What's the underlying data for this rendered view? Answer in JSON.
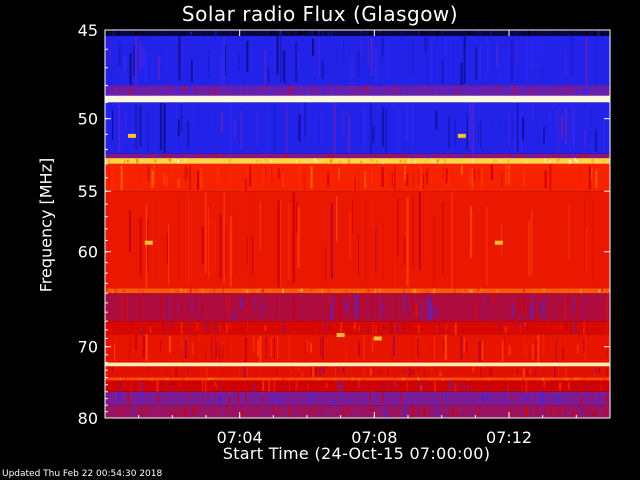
{
  "chart_data": {
    "type": "heatmap",
    "title": "Solar radio Flux (Glasgow)",
    "ylabel": "Frequency [MHz]",
    "xlabel": "Start Time (24-Oct-15 07:00:00)",
    "y_ticks": [
      45,
      50,
      55,
      60,
      70,
      80
    ],
    "x_ticks": [
      "07:04",
      "07:08",
      "07:12"
    ],
    "x_tick_values_minutes": [
      4,
      8,
      12
    ],
    "xlim_minutes": [
      0,
      15
    ],
    "ylim_mhz": [
      45,
      80
    ],
    "y_scale": "reciprocal",
    "colormap": [
      "#000000",
      "#1010a0",
      "#2828ff",
      "#7a1c9a",
      "#d00000",
      "#ff2a00",
      "#ff7a00",
      "#ffd040",
      "#ffffff"
    ],
    "bands": [
      {
        "from_mhz": 45.0,
        "to_mhz": 45.3,
        "intensity": 0.05
      },
      {
        "from_mhz": 45.3,
        "to_mhz": 48.0,
        "intensity": 0.22
      },
      {
        "from_mhz": 48.0,
        "to_mhz": 48.6,
        "intensity": 0.35
      },
      {
        "from_mhz": 48.6,
        "to_mhz": 49.0,
        "intensity": 0.98
      },
      {
        "from_mhz": 49.0,
        "to_mhz": 52.3,
        "intensity": 0.22
      },
      {
        "from_mhz": 52.3,
        "to_mhz": 52.6,
        "intensity": 0.4
      },
      {
        "from_mhz": 52.6,
        "to_mhz": 53.0,
        "intensity": 0.88
      },
      {
        "from_mhz": 53.0,
        "to_mhz": 55.0,
        "intensity": 0.6
      },
      {
        "from_mhz": 55.0,
        "to_mhz": 63.5,
        "intensity": 0.57
      },
      {
        "from_mhz": 63.5,
        "to_mhz": 64.0,
        "intensity": 0.7
      },
      {
        "from_mhz": 64.0,
        "to_mhz": 67.0,
        "intensity": 0.45
      },
      {
        "from_mhz": 67.0,
        "to_mhz": 68.5,
        "intensity": 0.52
      },
      {
        "from_mhz": 68.5,
        "to_mhz": 72.0,
        "intensity": 0.56
      },
      {
        "from_mhz": 72.0,
        "to_mhz": 72.5,
        "intensity": 0.95
      },
      {
        "from_mhz": 72.5,
        "to_mhz": 74.0,
        "intensity": 0.55
      },
      {
        "from_mhz": 74.0,
        "to_mhz": 74.4,
        "intensity": 0.68
      },
      {
        "from_mhz": 74.4,
        "to_mhz": 76.0,
        "intensity": 0.5
      },
      {
        "from_mhz": 76.0,
        "to_mhz": 78.0,
        "intensity": 0.38
      },
      {
        "from_mhz": 78.0,
        "to_mhz": 80.0,
        "intensity": 0.42
      }
    ],
    "hot_spots": [
      {
        "minute": 1.3,
        "mhz": 59.2
      },
      {
        "minute": 11.7,
        "mhz": 59.2
      },
      {
        "minute": 0.8,
        "mhz": 51.1
      },
      {
        "minute": 10.6,
        "mhz": 51.1
      },
      {
        "minute": 7.0,
        "mhz": 68.6
      },
      {
        "minute": 8.1,
        "mhz": 69.0
      }
    ]
  },
  "footer": {
    "updated": "Updated Thu Feb 22 00:54:30 2018"
  }
}
